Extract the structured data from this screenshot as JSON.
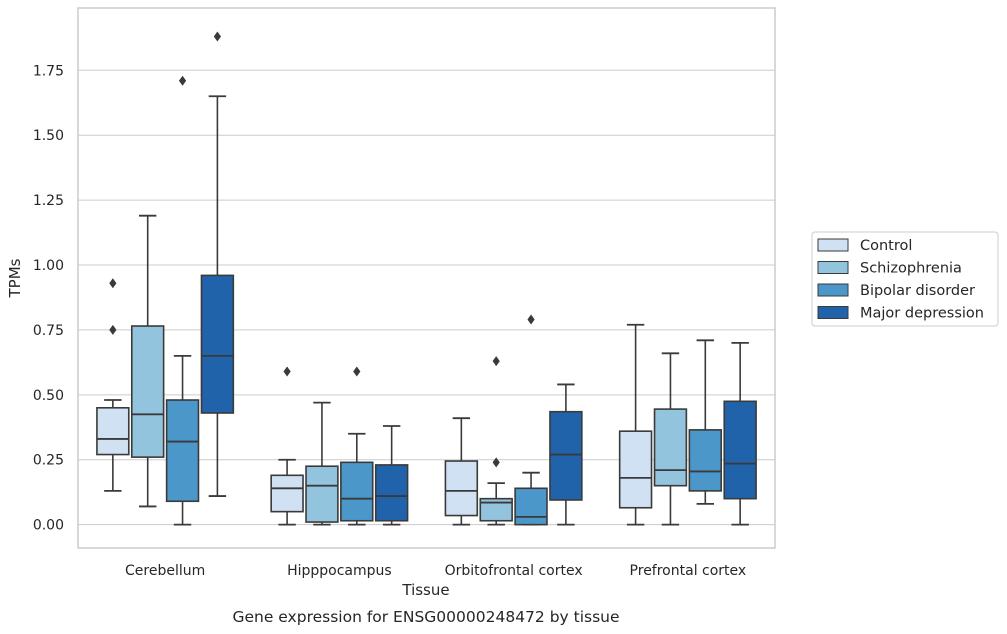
{
  "caption": "Gene expression for ENSG00000248472 by tissue",
  "colors": {
    "Control": "#cfe1f2",
    "Schizophrenia": "#93c4de",
    "Bipolar disorder": "#4b97c9",
    "Major depression": "#2163aa",
    "box_edge": "#3a3a3a",
    "grid": "#cccccc"
  },
  "chart_data": {
    "type": "box",
    "xlabel": "Tissue",
    "ylabel": "TPMs",
    "categories": [
      "Cerebellum",
      "Hipppocampus",
      "Orbitofrontal cortex",
      "Prefrontal cortex"
    ],
    "ylim": [
      -0.09,
      1.99
    ],
    "yticks": [
      0.0,
      0.25,
      0.5,
      0.75,
      1.0,
      1.25,
      1.5,
      1.75
    ],
    "ytick_labels": [
      "0.00",
      "0.25",
      "0.50",
      "0.75",
      "1.00",
      "1.25",
      "1.50",
      "1.75"
    ],
    "grid": true,
    "legend_position": "right",
    "series": [
      {
        "name": "Control",
        "boxes": [
          {
            "whislo": 0.13,
            "q1": 0.27,
            "med": 0.33,
            "q3": 0.45,
            "whishi": 0.48,
            "fliers": [
              0.75,
              0.93
            ]
          },
          {
            "whislo": 0.0,
            "q1": 0.05,
            "med": 0.14,
            "q3": 0.19,
            "whishi": 0.25,
            "fliers": [
              0.59
            ]
          },
          {
            "whislo": 0.0,
            "q1": 0.035,
            "med": 0.13,
            "q3": 0.245,
            "whishi": 0.41,
            "fliers": []
          },
          {
            "whislo": 0.0,
            "q1": 0.065,
            "med": 0.18,
            "q3": 0.36,
            "whishi": 0.77,
            "fliers": []
          }
        ]
      },
      {
        "name": "Schizophrenia",
        "boxes": [
          {
            "whislo": 0.07,
            "q1": 0.26,
            "med": 0.425,
            "q3": 0.765,
            "whishi": 1.19,
            "fliers": []
          },
          {
            "whislo": 0.0,
            "q1": 0.01,
            "med": 0.15,
            "q3": 0.225,
            "whishi": 0.47,
            "fliers": []
          },
          {
            "whislo": 0.0,
            "q1": 0.015,
            "med": 0.085,
            "q3": 0.1,
            "whishi": 0.16,
            "fliers": [
              0.24,
              0.63
            ]
          },
          {
            "whislo": 0.0,
            "q1": 0.15,
            "med": 0.21,
            "q3": 0.445,
            "whishi": 0.66,
            "fliers": []
          }
        ]
      },
      {
        "name": "Bipolar disorder",
        "boxes": [
          {
            "whislo": 0.0,
            "q1": 0.09,
            "med": 0.32,
            "q3": 0.48,
            "whishi": 0.65,
            "fliers": [
              1.71
            ]
          },
          {
            "whislo": 0.0,
            "q1": 0.015,
            "med": 0.1,
            "q3": 0.24,
            "whishi": 0.35,
            "fliers": [
              0.59
            ]
          },
          {
            "whislo": 0.0,
            "q1": 0.0,
            "med": 0.03,
            "q3": 0.14,
            "whishi": 0.2,
            "fliers": [
              0.79
            ]
          },
          {
            "whislo": 0.08,
            "q1": 0.13,
            "med": 0.205,
            "q3": 0.365,
            "whishi": 0.71,
            "fliers": []
          }
        ]
      },
      {
        "name": "Major depression",
        "boxes": [
          {
            "whislo": 0.11,
            "q1": 0.43,
            "med": 0.65,
            "q3": 0.96,
            "whishi": 1.65,
            "fliers": [
              1.88
            ]
          },
          {
            "whislo": 0.0,
            "q1": 0.015,
            "med": 0.11,
            "q3": 0.23,
            "whishi": 0.38,
            "fliers": []
          },
          {
            "whislo": 0.0,
            "q1": 0.095,
            "med": 0.27,
            "q3": 0.435,
            "whishi": 0.54,
            "fliers": []
          },
          {
            "whislo": 0.0,
            "q1": 0.1,
            "med": 0.235,
            "q3": 0.475,
            "whishi": 0.7,
            "fliers": []
          }
        ]
      }
    ]
  }
}
